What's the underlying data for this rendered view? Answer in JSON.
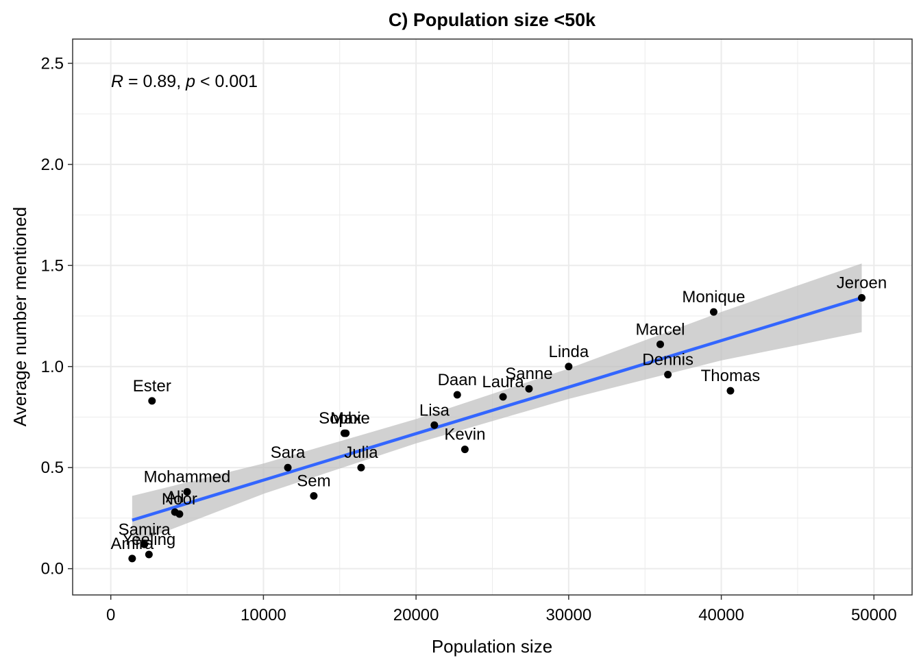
{
  "chart_data": {
    "type": "scatter",
    "title": "C) Population size <50k",
    "xlabel": "Population size",
    "ylabel": "Average number mentioned",
    "xlim": [
      -2500,
      52500
    ],
    "ylim": [
      -0.13,
      2.62
    ],
    "xticks": [
      0,
      10000,
      20000,
      30000,
      40000,
      50000
    ],
    "xtick_labels": [
      "0",
      "10000",
      "20000",
      "30000",
      "40000",
      "50000"
    ],
    "yticks": [
      0.0,
      0.5,
      1.0,
      1.5,
      2.0,
      2.5
    ],
    "ytick_labels": [
      "0.0",
      "0.5",
      "1.0",
      "1.5",
      "2.0",
      "2.5"
    ],
    "grid": true,
    "stat_annotation": {
      "r": "R",
      "rest": " = 0.89, ",
      "p": "p",
      "tail": " < 0.001"
    },
    "colors": {
      "points": "#000000",
      "fit_line": "#3366FF",
      "ribbon": "#bebebe",
      "grid": "#ebebeb",
      "border": "#333333"
    },
    "fit": {
      "x0": 1400,
      "y0": 0.24,
      "x1": 49200,
      "y1": 1.34
    },
    "ribbon": [
      {
        "x": 1400,
        "lo": 0.12,
        "hi": 0.36
      },
      {
        "x": 10000,
        "lo": 0.37,
        "hi": 0.52
      },
      {
        "x": 20000,
        "lo": 0.62,
        "hi": 0.74
      },
      {
        "x": 30000,
        "lo": 0.84,
        "hi": 0.99
      },
      {
        "x": 40000,
        "lo": 1.03,
        "hi": 1.27
      },
      {
        "x": 49200,
        "lo": 1.17,
        "hi": 1.51
      }
    ],
    "points": [
      {
        "name": "Jeroen",
        "x": 49200,
        "y": 1.34
      },
      {
        "name": "Monique",
        "x": 39500,
        "y": 1.27
      },
      {
        "name": "Marcel",
        "x": 36000,
        "y": 1.11
      },
      {
        "name": "Dennis",
        "x": 36500,
        "y": 0.96
      },
      {
        "name": "Thomas",
        "x": 40600,
        "y": 0.88
      },
      {
        "name": "Linda",
        "x": 30000,
        "y": 1.0
      },
      {
        "name": "Sanne",
        "x": 27400,
        "y": 0.89
      },
      {
        "name": "Laura",
        "x": 25700,
        "y": 0.85
      },
      {
        "name": "Daan",
        "x": 22700,
        "y": 0.86
      },
      {
        "name": "Lisa",
        "x": 21200,
        "y": 0.71
      },
      {
        "name": "Kevin",
        "x": 23200,
        "y": 0.59
      },
      {
        "name": "Sophie",
        "x": 15300,
        "y": 0.67
      },
      {
        "name": "Max",
        "x": 15400,
        "y": 0.67
      },
      {
        "name": "Julia",
        "x": 16400,
        "y": 0.5
      },
      {
        "name": "Sara",
        "x": 11600,
        "y": 0.5
      },
      {
        "name": "Sem",
        "x": 13300,
        "y": 0.36
      },
      {
        "name": "Ester",
        "x": 2700,
        "y": 0.83
      },
      {
        "name": "Mohammed",
        "x": 5000,
        "y": 0.38
      },
      {
        "name": "Ali",
        "x": 4200,
        "y": 0.28
      },
      {
        "name": "Noor",
        "x": 4500,
        "y": 0.27
      },
      {
        "name": "Samira",
        "x": 2200,
        "y": 0.12
      },
      {
        "name": "Yeeling",
        "x": 2500,
        "y": 0.07
      },
      {
        "name": "Amira",
        "x": 1400,
        "y": 0.05
      }
    ]
  }
}
